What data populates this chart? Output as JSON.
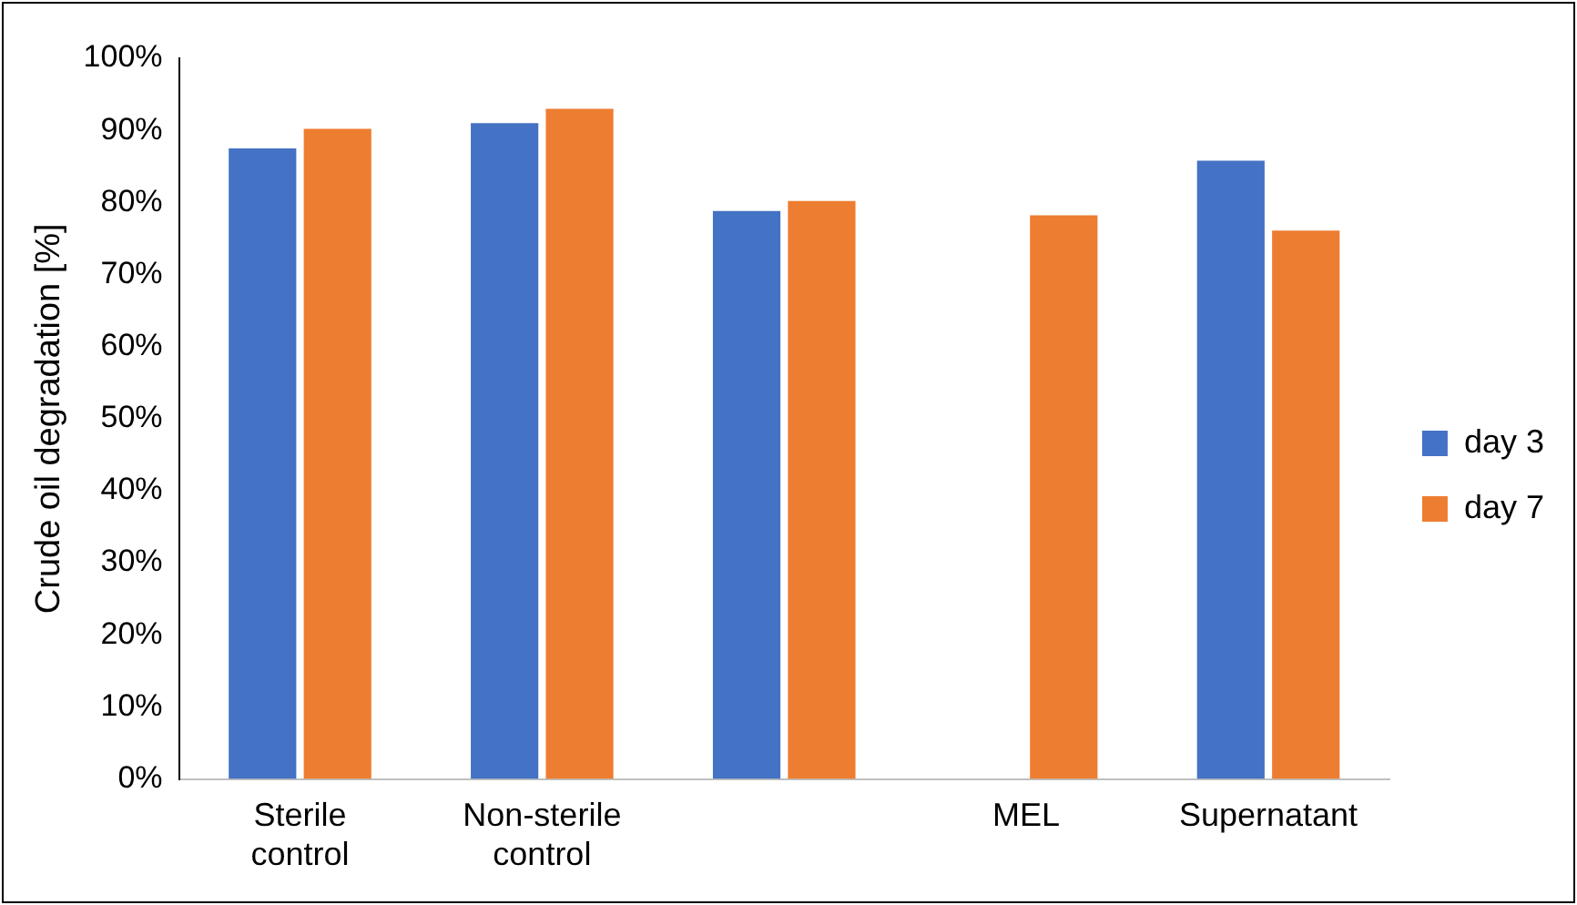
{
  "chart_data": {
    "type": "bar",
    "categories": [
      "Sterile control",
      "Non-sterile control",
      null,
      "MEL",
      "Supernatant"
    ],
    "series": [
      {
        "name": "day 3",
        "color": "#4472c4",
        "values": [
          87.5,
          91,
          78.8,
          null,
          85.8
        ]
      },
      {
        "name": "day 7",
        "color": "#ed7d31",
        "values": [
          90.2,
          93,
          80.2,
          78.2,
          76.1
        ]
      }
    ],
    "ylabel": "Crude oil degradation [%]",
    "ylim": [
      0,
      100
    ],
    "yticks": [
      {
        "value": 0,
        "label": "0%"
      },
      {
        "value": 10,
        "label": "10%"
      },
      {
        "value": 20,
        "label": "20%"
      },
      {
        "value": 30,
        "label": "30%"
      },
      {
        "value": 40,
        "label": "40%"
      },
      {
        "value": 50,
        "label": "50%"
      },
      {
        "value": 60,
        "label": "60%"
      },
      {
        "value": 70,
        "label": "70%"
      },
      {
        "value": 80,
        "label": "80%"
      },
      {
        "value": 90,
        "label": "90%"
      },
      {
        "value": 100,
        "label": "100%"
      }
    ],
    "grid": false,
    "legend": "right"
  }
}
